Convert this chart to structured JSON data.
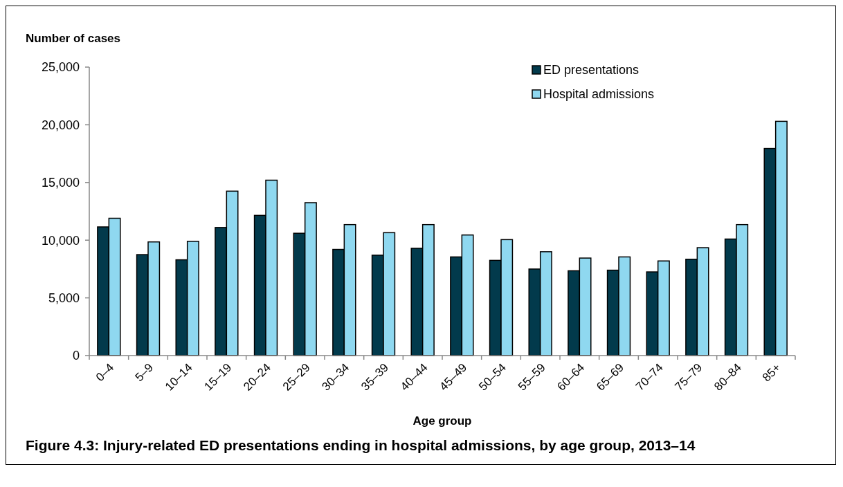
{
  "chart_data": {
    "type": "bar",
    "title": "Figure 4.3: Injury-related ED presentations ending in hospital admissions, by age group, 2013–14",
    "ylabel": "Number of cases",
    "xlabel": "Age group",
    "categories": [
      "0–4",
      "5–9",
      "10–14",
      "15–19",
      "20–24",
      "25–29",
      "30–34",
      "35–39",
      "40–44",
      "45–49",
      "50–54",
      "55–59",
      "60–64",
      "65–69",
      "70–74",
      "75–79",
      "80–84",
      "85+"
    ],
    "series": [
      {
        "name": "ED presentations",
        "color": "#023a4c",
        "values": [
          11150,
          8750,
          8300,
          11100,
          12150,
          10600,
          9200,
          8700,
          9300,
          8550,
          8250,
          7500,
          7350,
          7400,
          7250,
          8350,
          10100,
          17950
        ]
      },
      {
        "name": "Hospital admissions",
        "color": "#8fd8f0",
        "values": [
          11900,
          9850,
          9900,
          14250,
          15200,
          13250,
          11350,
          10650,
          11350,
          10450,
          10050,
          9000,
          8450,
          8550,
          8200,
          9350,
          11350,
          20300
        ]
      }
    ],
    "ylim": [
      0,
      25000
    ],
    "yticks": [
      {
        "value": 0,
        "label": "0"
      },
      {
        "value": 5000,
        "label": "5,000"
      },
      {
        "value": 10000,
        "label": "10,000"
      },
      {
        "value": 15000,
        "label": "15,000"
      },
      {
        "value": 20000,
        "label": "20,000"
      },
      {
        "value": 25000,
        "label": "25,000"
      }
    ],
    "grid": false,
    "legend": "top right"
  }
}
